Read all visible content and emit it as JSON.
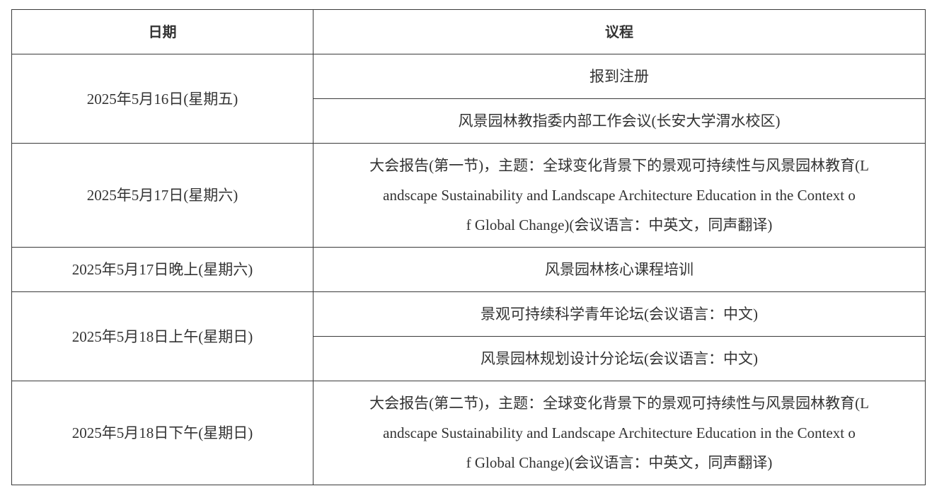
{
  "header": {
    "date": "日期",
    "agenda": "议程"
  },
  "rows": [
    {
      "date": "2025年5月16日(星期五)",
      "items": [
        {
          "lines": [
            "报到注册"
          ]
        },
        {
          "lines": [
            "风景园林教指委内部工作会议(长安大学渭水校区)"
          ]
        }
      ]
    },
    {
      "date": "2025年5月17日(星期六)",
      "items": [
        {
          "lines": [
            "大会报告(第一节)，主题：全球变化背景下的景观可持续性与风景园林教育(L",
            "andscape Sustainability and Landscape Architecture Education in the Context o",
            "f Global Change)(会议语言：中英文，同声翻译)"
          ]
        }
      ]
    },
    {
      "date": "2025年5月17日晚上(星期六)",
      "items": [
        {
          "lines": [
            "风景园林核心课程培训"
          ]
        }
      ]
    },
    {
      "date": "2025年5月18日上午(星期日)",
      "items": [
        {
          "lines": [
            "景观可持续科学青年论坛(会议语言：中文)"
          ]
        },
        {
          "lines": [
            "风景园林规划设计分论坛(会议语言：中文)"
          ]
        }
      ]
    },
    {
      "date": "2025年5月18日下午(星期日)",
      "items": [
        {
          "lines": [
            "大会报告(第二节)，主题：全球变化背景下的景观可持续性与风景园林教育(L",
            "andscape Sustainability and Landscape Architecture Education in the Context o",
            "f Global Change)(会议语言：中英文，同声翻译)"
          ]
        }
      ]
    }
  ]
}
